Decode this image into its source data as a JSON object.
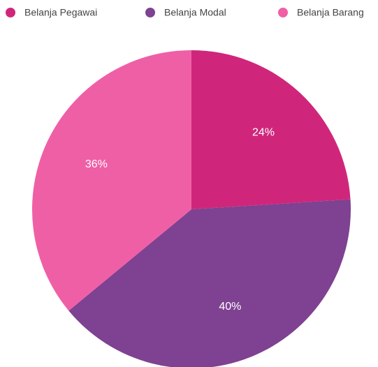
{
  "chart_data": {
    "type": "pie",
    "categories": [
      "Belanja Pegawai",
      "Belanja Modal",
      "Belanja Barang"
    ],
    "values": [
      24,
      40,
      36
    ],
    "value_labels": [
      "24%",
      "40%",
      "36%"
    ],
    "colors": [
      "#cf267b",
      "#7f4191",
      "#ef5fa6"
    ],
    "legend": "top"
  }
}
